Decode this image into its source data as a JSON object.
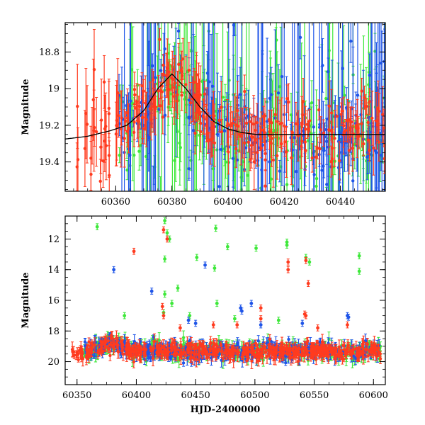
{
  "chart_data": [
    {
      "type": "scatter",
      "title": "",
      "xlabel": "",
      "ylabel": "Magnitude",
      "xlim": [
        60342,
        60456
      ],
      "ylim": [
        19.56,
        18.64
      ],
      "y_inverted": true,
      "xticks": [
        60360,
        60380,
        60400,
        60420,
        60440
      ],
      "yticks": [
        18.8,
        19,
        19.2,
        19.4
      ],
      "ytick_labels": [
        "18.8",
        "19",
        "19.2",
        "19.4"
      ],
      "series": [
        {
          "color": "#ff3b1f",
          "x_range": [
            60346,
            60456
          ],
          "baseline": 19.22,
          "errorbar": true
        },
        {
          "color": "#3ee83a",
          "x_range": [
            60361,
            60456
          ],
          "baseline": 19.22,
          "errorbar": true
        },
        {
          "color": "#1f55e8",
          "x_range": [
            60361,
            60456
          ],
          "baseline": 19.22,
          "errorbar": true
        }
      ],
      "model_curve": {
        "color": "#000000",
        "x": [
          60342,
          60350,
          60358,
          60364,
          60370,
          60375,
          60380,
          60385,
          60390,
          60395,
          60400,
          60405,
          60410,
          60420,
          60430,
          60440,
          60456
        ],
        "y": [
          19.275,
          19.26,
          19.23,
          19.2,
          19.12,
          19.0,
          18.92,
          19.0,
          19.1,
          19.18,
          19.22,
          19.24,
          19.25,
          19.25,
          19.25,
          19.25,
          19.25
        ]
      },
      "outburst": {
        "peak_x": 60379,
        "peak_y": 18.88
      }
    },
    {
      "type": "scatter",
      "title": "",
      "xlabel": "HJD-2400000",
      "ylabel": "Magnitude",
      "xlim": [
        60340,
        60610
      ],
      "ylim": [
        21.5,
        10.5
      ],
      "y_inverted": true,
      "xticks": [
        60350,
        60400,
        60450,
        60500,
        60550,
        60600
      ],
      "yticks": [
        12,
        14,
        16,
        18,
        20
      ],
      "ytick_labels": [
        "12",
        "14",
        "16",
        "18",
        "20"
      ],
      "series": [
        {
          "color": "#ff3b1f",
          "baseline": 19.3,
          "x_range": [
            60346,
            60606
          ],
          "errorbar": true
        },
        {
          "color": "#3ee83a",
          "baseline": 19.3,
          "x_range": [
            60355,
            60606
          ],
          "errorbar": true
        },
        {
          "color": "#1f55e8",
          "baseline": 19.3,
          "x_range": [
            60355,
            60606
          ],
          "errorbar": true
        }
      ],
      "outliers": [
        {
          "color": "#3ee83a",
          "points": [
            [
              60367,
              11.2
            ],
            [
              60424,
              10.8
            ],
            [
              60426,
              11.6
            ],
            [
              60428,
              12.0
            ],
            [
              60467,
              11.3
            ],
            [
              60477,
              12.5
            ],
            [
              60501,
              12.6
            ],
            [
              60527,
              12.2
            ],
            [
              60527,
              12.4
            ],
            [
              60543,
              13.2
            ],
            [
              60546,
              13.5
            ],
            [
              60424,
              13.3
            ],
            [
              60451,
              13.2
            ],
            [
              60466,
              13.9
            ],
            [
              60435,
              15.2
            ],
            [
              60430,
              16.2
            ],
            [
              60424,
              15.6
            ],
            [
              60423,
              16.8
            ],
            [
              60468,
              16.2
            ],
            [
              60588,
              13.1
            ],
            [
              60588,
              14.1
            ],
            [
              60390,
              17.0
            ],
            [
              60445,
              17.0
            ],
            [
              60483,
              17.2
            ],
            [
              60520,
              17.3
            ]
          ]
        },
        {
          "color": "#ff3b1f",
          "points": [
            [
              60398,
              12.8
            ],
            [
              60423,
              11.4
            ],
            [
              60426,
              12.0
            ],
            [
              60528,
              13.5
            ],
            [
              60528,
              14.0
            ],
            [
              60543,
              13.4
            ],
            [
              60545,
              14.9
            ],
            [
              60422,
              16.4
            ],
            [
              60423,
              17.0
            ],
            [
              60505,
              16.5
            ],
            [
              60542,
              16.9
            ],
            [
              60543,
              17.0
            ],
            [
              60578,
              17.6
            ],
            [
              60505,
              17.2
            ],
            [
              60485,
              17.6
            ],
            [
              60437,
              17.8
            ],
            [
              60465,
              17.6
            ],
            [
              60553,
              17.8
            ]
          ]
        },
        {
          "color": "#1f55e8",
          "points": [
            [
              60381,
              14.0
            ],
            [
              60413,
              15.4
            ],
            [
              60458,
              13.7
            ],
            [
              60497,
              16.2
            ],
            [
              60488,
              16.5
            ],
            [
              60489,
              16.7
            ],
            [
              60578,
              17.0
            ],
            [
              60579,
              17.1
            ],
            [
              60444,
              17.3
            ],
            [
              60450,
              17.5
            ],
            [
              60540,
              17.5
            ],
            [
              60505,
              17.6
            ]
          ]
        }
      ]
    }
  ]
}
